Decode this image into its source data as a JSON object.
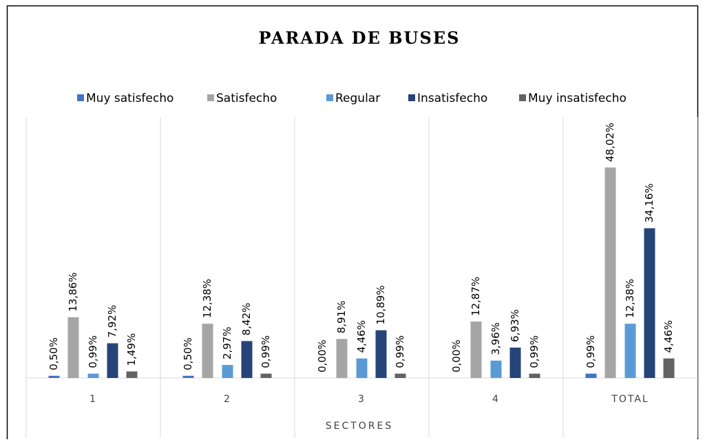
{
  "chart_data": {
    "type": "bar",
    "title": "PARADA DE BUSES",
    "x_label": "SECTORES",
    "categories": [
      "1",
      "2",
      "3",
      "4",
      "TOTAL"
    ],
    "ylim": [
      0,
      60
    ],
    "series": [
      {
        "name": "Muy satisfecho",
        "color": "#4472c4",
        "values": [
          0.5,
          0.5,
          0,
          0,
          0.99
        ],
        "value_labels": [
          "0,50%",
          "0,50%",
          "0,00%",
          "0,00%",
          "0,99%"
        ]
      },
      {
        "name": "Satisfecho",
        "color": "#a5a5a5",
        "values": [
          13.86,
          12.38,
          8.91,
          12.87,
          48.02
        ],
        "value_labels": [
          "13,86%",
          "12,38%",
          "8,91%",
          "12,87%",
          "48,02%"
        ]
      },
      {
        "name": "Regular",
        "color": "#5b9bd5",
        "values": [
          0.99,
          2.97,
          4.46,
          3.96,
          12.38
        ],
        "value_labels": [
          "0,99%",
          "2,97%",
          "4,46%",
          "3,96%",
          "12,38%"
        ]
      },
      {
        "name": "Insatisfecho",
        "color": "#264478",
        "values": [
          7.92,
          8.42,
          10.89,
          6.93,
          34.16
        ],
        "value_labels": [
          "7,92%",
          "8,42%",
          "10,89%",
          "6,93%",
          "34,16%"
        ]
      },
      {
        "name": "Muy insatisfecho",
        "color": "#636363",
        "values": [
          1.49,
          0.99,
          0.99,
          0.99,
          4.46
        ],
        "value_labels": [
          "1,49%",
          "0,99%",
          "0,99%",
          "0,99%",
          "4,46%"
        ]
      }
    ]
  }
}
